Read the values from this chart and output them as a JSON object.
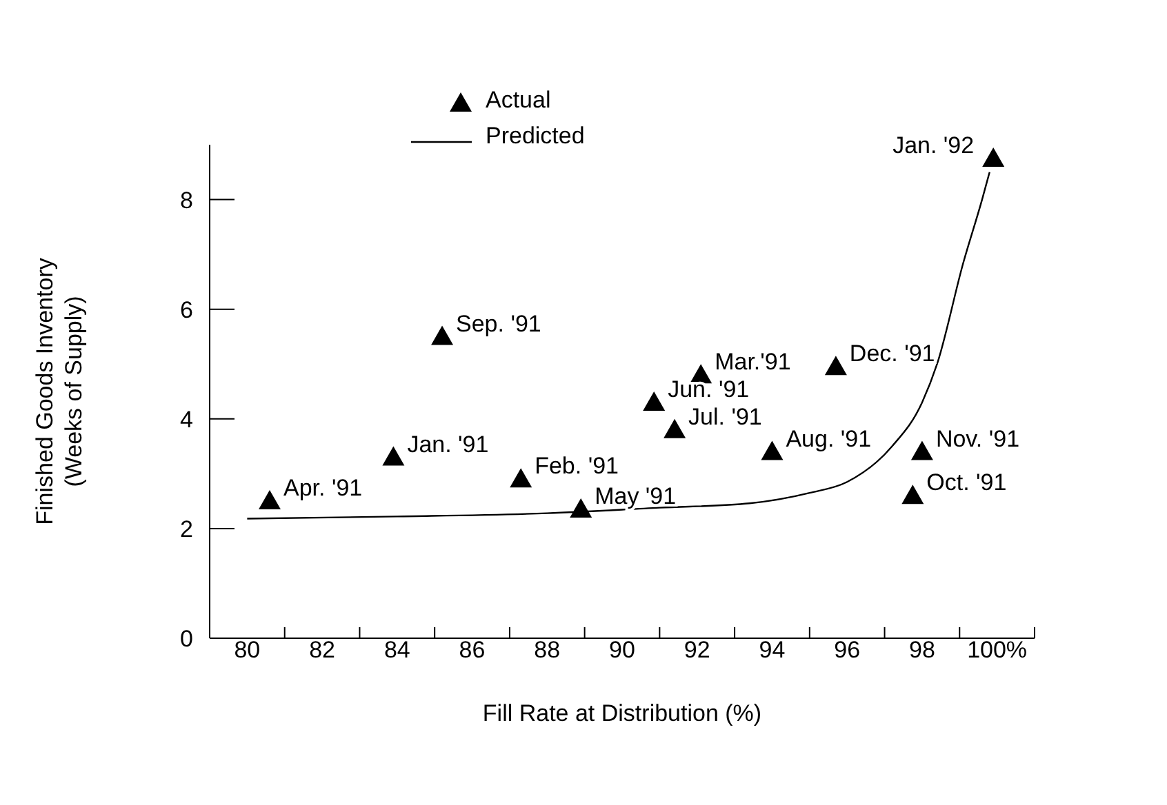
{
  "chart_data": {
    "type": "scatter",
    "xlabel": "Fill Rate at Distribution (%)",
    "ylabel": "Finished Goods Inventory\n(Weeks of Supply)",
    "xlim": [
      79,
      101
    ],
    "xticks": [
      {
        "value": 80,
        "label": "80"
      },
      {
        "value": 81,
        "label": null
      },
      {
        "value": 82,
        "label": "82"
      },
      {
        "value": 83,
        "label": null
      },
      {
        "value": 84,
        "label": "84"
      },
      {
        "value": 85,
        "label": null
      },
      {
        "value": 86,
        "label": "86"
      },
      {
        "value": 87,
        "label": null
      },
      {
        "value": 88,
        "label": "88"
      },
      {
        "value": 89,
        "label": null
      },
      {
        "value": 90,
        "label": "90"
      },
      {
        "value": 91,
        "label": null
      },
      {
        "value": 92,
        "label": "92"
      },
      {
        "value": 93,
        "label": null
      },
      {
        "value": 94,
        "label": "94"
      },
      {
        "value": 95,
        "label": null
      },
      {
        "value": 96,
        "label": "96"
      },
      {
        "value": 97,
        "label": null
      },
      {
        "value": 98,
        "label": "98"
      },
      {
        "value": 99,
        "label": null
      },
      {
        "value": 100,
        "label": "100%"
      },
      {
        "value": 101,
        "label": null
      }
    ],
    "ylim": [
      0,
      9
    ],
    "yticks": [
      0,
      2,
      4,
      6,
      8
    ],
    "grid": false,
    "legend": "top",
    "series": [
      {
        "name": "Actual",
        "marker": "triangle",
        "color": "#000000",
        "x": [
          80.6,
          83.9,
          85.2,
          87.3,
          88.9,
          90.85,
          91.4,
          92.1,
          94.0,
          95.7,
          98.0,
          97.75,
          99.9
        ],
        "values": [
          2.5,
          3.3,
          5.5,
          2.9,
          2.35,
          4.3,
          3.8,
          4.8,
          3.4,
          4.95,
          3.4,
          2.6,
          8.75
        ]
      },
      {
        "name": "Predicted",
        "type": "line",
        "color": "#000000",
        "x": [
          80,
          84,
          88,
          91,
          93.4,
          95,
          96,
          97.2,
          98,
          98.4,
          99.1,
          99.6,
          99.8
        ],
        "values": [
          2.18,
          2.22,
          2.28,
          2.38,
          2.46,
          2.65,
          2.85,
          3.5,
          4.3,
          5.0,
          6.85,
          8.0,
          8.5
        ]
      }
    ],
    "annotations": [
      {
        "text": "Apr. '91",
        "x": 80.6,
        "y": 2.5
      },
      {
        "text": "Jan. '91",
        "x": 83.9,
        "y": 3.3
      },
      {
        "text": "Sep. '91",
        "x": 85.2,
        "y": 5.5
      },
      {
        "text": "Feb. '91",
        "x": 87.3,
        "y": 2.9
      },
      {
        "text": "May '91",
        "x": 88.9,
        "y": 2.35
      },
      {
        "text": "Jun. '91",
        "x": 90.85,
        "y": 4.3
      },
      {
        "text": "Jul. '91",
        "x": 91.4,
        "y": 3.8
      },
      {
        "text": "Mar.'91",
        "x": 92.1,
        "y": 4.8
      },
      {
        "text": "Aug. '91",
        "x": 94.0,
        "y": 3.4
      },
      {
        "text": "Dec. '91",
        "x": 95.7,
        "y": 4.95
      },
      {
        "text": "Nov. '91",
        "x": 98.0,
        "y": 3.4
      },
      {
        "text": "Oct. '91",
        "x": 97.75,
        "y": 2.6
      },
      {
        "text": "Jan. '92",
        "x": 99.9,
        "y": 8.75
      }
    ]
  }
}
